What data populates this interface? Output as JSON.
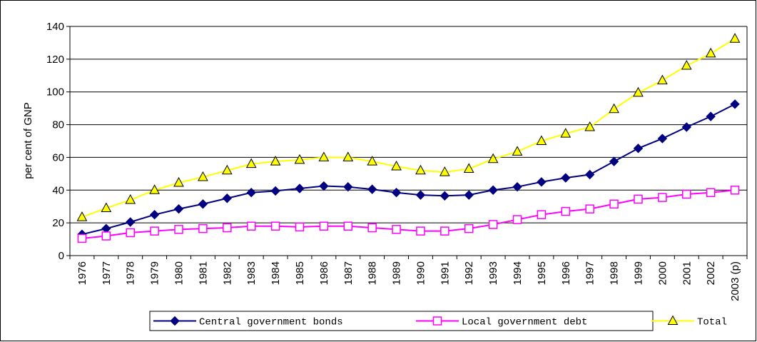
{
  "chart_data": {
    "type": "line",
    "y_label": "per cent of GNP",
    "categories": [
      "1976",
      "1977",
      "1978",
      "1979",
      "1980",
      "1981",
      "1982",
      "1983",
      "1984",
      "1985",
      "1986",
      "1987",
      "1988",
      "1989",
      "1990",
      "1991",
      "1992",
      "1993",
      "1994",
      "1995",
      "1996",
      "1997",
      "1998",
      "1999",
      "2000",
      "2001",
      "2002",
      "2003 (p)"
    ],
    "series": [
      {
        "name": "Central government bonds",
        "color": "#000080",
        "marker": "diamond",
        "values": [
          13,
          16.5,
          20.5,
          25,
          28.5,
          31.5,
          35,
          38.5,
          39.5,
          41,
          42.5,
          42,
          40.5,
          38.5,
          37,
          36.5,
          37,
          40,
          42,
          45,
          47.5,
          49.5,
          57.5,
          65.5,
          71.5,
          78.5,
          85,
          92.5
        ]
      },
      {
        "name": "Local government debt",
        "color": "#ff00ff",
        "marker": "square",
        "values": [
          10.5,
          12,
          14,
          15,
          16,
          16.5,
          17,
          18,
          18,
          17.5,
          18,
          18,
          17,
          16,
          15,
          15,
          16.5,
          19,
          22,
          25,
          27,
          28.5,
          31.5,
          34.5,
          35.5,
          37.5,
          38.5,
          40
        ]
      },
      {
        "name": "Total",
        "color": "#ffff00",
        "marker": "triangle",
        "values": [
          23.5,
          29,
          34,
          40,
          44.5,
          48,
          52,
          56,
          57.5,
          58.5,
          60,
          60,
          57.5,
          54.5,
          52,
          51,
          53,
          59,
          63.5,
          70,
          74.5,
          78.5,
          89.5,
          99.5,
          107,
          116,
          123.5,
          132.5
        ]
      }
    ],
    "ylim": [
      0,
      140
    ],
    "yticks": [
      0,
      20,
      40,
      60,
      80,
      100,
      120,
      140
    ],
    "grid": true
  }
}
